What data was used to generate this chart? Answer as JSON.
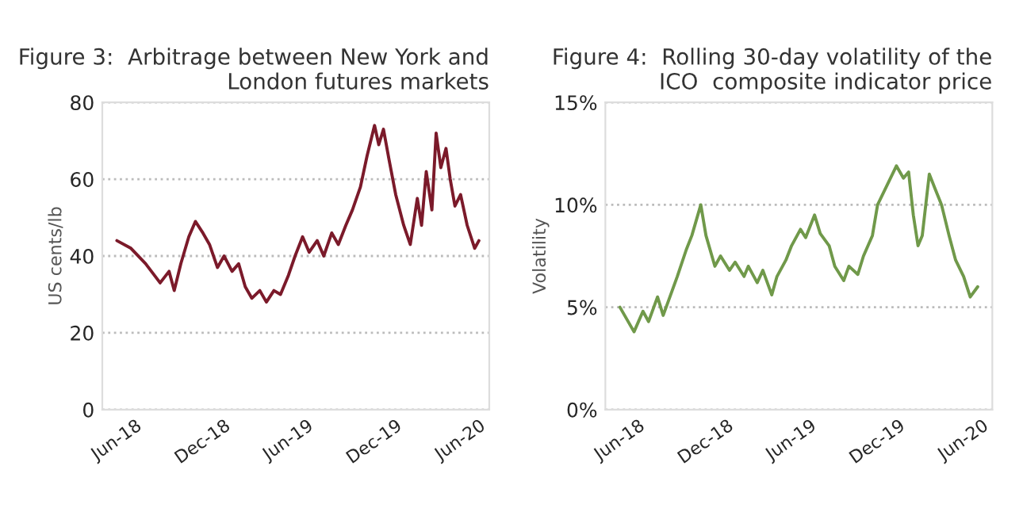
{
  "chart_data": [
    {
      "type": "line",
      "title": "Figure 3:  Arbitrage between New York and\nLondon futures markets",
      "ylabel": "US cents/lb",
      "x": [
        "2018-06-01",
        "2018-07-01",
        "2018-08-01",
        "2018-09-01",
        "2018-09-20",
        "2018-10-01",
        "2018-10-15",
        "2018-11-01",
        "2018-11-15",
        "2018-12-01",
        "2018-12-15",
        "2019-01-01",
        "2019-01-15",
        "2019-02-01",
        "2019-02-15",
        "2019-03-01",
        "2019-03-15",
        "2019-04-01",
        "2019-04-15",
        "2019-05-01",
        "2019-05-15",
        "2019-06-01",
        "2019-06-15",
        "2019-07-01",
        "2019-07-15",
        "2019-08-01",
        "2019-08-15",
        "2019-09-01",
        "2019-09-15",
        "2019-10-01",
        "2019-10-15",
        "2019-11-01",
        "2019-11-15",
        "2019-12-01",
        "2019-12-10",
        "2019-12-20",
        "2020-01-01",
        "2020-01-15",
        "2020-02-01",
        "2020-02-15",
        "2020-03-01",
        "2020-03-10",
        "2020-03-20",
        "2020-04-01",
        "2020-04-10",
        "2020-04-20",
        "2020-05-01",
        "2020-05-10",
        "2020-05-20",
        "2020-06-01",
        "2020-06-15",
        "2020-07-01",
        "2020-07-10"
      ],
      "series": [
        {
          "color": "#7b1a2a",
          "values": [
            44,
            42,
            38,
            33,
            36,
            31,
            38,
            45,
            49,
            46,
            43,
            37,
            40,
            36,
            38,
            32,
            29,
            31,
            28,
            31,
            30,
            35,
            40,
            45,
            41,
            44,
            40,
            46,
            43,
            48,
            52,
            58,
            66,
            74,
            69,
            73,
            65,
            56,
            48,
            43,
            55,
            48,
            62,
            52,
            72,
            63,
            68,
            60,
            53,
            56,
            48,
            42,
            44
          ]
        }
      ],
      "xlim": [
        "2018-05-01",
        "2020-08-01"
      ],
      "xticks": [
        {
          "value": "2018-06-01",
          "label": "Jun-18"
        },
        {
          "value": "2018-12-01",
          "label": "Dec-18"
        },
        {
          "value": "2019-06-01",
          "label": "Jun-19"
        },
        {
          "value": "2019-12-01",
          "label": "Dec-19"
        },
        {
          "value": "2020-06-01",
          "label": "Jun-20"
        }
      ],
      "ylim": [
        0,
        80
      ],
      "yticks": [
        0,
        20,
        40,
        60,
        80
      ],
      "grid": "y",
      "line_style": "solid"
    },
    {
      "type": "line",
      "title": "Figure 4:  Rolling 30-day volatility of the\nICO  composite indicator price",
      "ylabel": "Volatility",
      "x": [
        "2018-06-01",
        "2018-07-01",
        "2018-07-20",
        "2018-08-01",
        "2018-08-20",
        "2018-09-01",
        "2018-09-20",
        "2018-10-01",
        "2018-10-20",
        "2018-11-01",
        "2018-11-20",
        "2018-12-01",
        "2018-12-20",
        "2019-01-01",
        "2019-01-20",
        "2019-02-01",
        "2019-02-20",
        "2019-03-01",
        "2019-03-20",
        "2019-04-01",
        "2019-04-20",
        "2019-05-01",
        "2019-05-20",
        "2019-06-01",
        "2019-06-20",
        "2019-07-01",
        "2019-07-20",
        "2019-08-01",
        "2019-08-20",
        "2019-09-01",
        "2019-09-20",
        "2019-10-01",
        "2019-10-20",
        "2019-11-01",
        "2019-11-20",
        "2019-12-01",
        "2020-01-10",
        "2020-01-25",
        "2020-02-05",
        "2020-02-15",
        "2020-02-25",
        "2020-03-05",
        "2020-03-20",
        "2020-04-01",
        "2020-04-15",
        "2020-05-01",
        "2020-05-15",
        "2020-06-01",
        "2020-06-15",
        "2020-07-01"
      ],
      "series": [
        {
          "color": "#70994a",
          "values": [
            5.0,
            3.8,
            4.8,
            4.3,
            5.5,
            4.6,
            5.8,
            6.5,
            7.8,
            8.5,
            10.0,
            8.5,
            7.0,
            7.5,
            6.8,
            7.2,
            6.5,
            7.0,
            6.2,
            6.8,
            5.6,
            6.5,
            7.3,
            8.0,
            8.8,
            8.4,
            9.5,
            8.6,
            8.0,
            7.0,
            6.3,
            7.0,
            6.6,
            7.5,
            8.5,
            10.0,
            11.9,
            11.3,
            11.6,
            9.5,
            8.0,
            8.5,
            11.5,
            10.8,
            10.0,
            8.5,
            7.3,
            6.5,
            5.5,
            6.0
          ]
        }
      ],
      "xlim": [
        "2018-05-01",
        "2020-08-01"
      ],
      "xticks": [
        {
          "value": "2018-06-01",
          "label": "Jun-18"
        },
        {
          "value": "2018-12-01",
          "label": "Dec-18"
        },
        {
          "value": "2019-06-01",
          "label": "Jun-19"
        },
        {
          "value": "2019-12-01",
          "label": "Dec-19"
        },
        {
          "value": "2020-06-01",
          "label": "Jun-20"
        }
      ],
      "ylim": [
        0,
        15
      ],
      "yticks": [
        {
          "value": 0,
          "label": "0%"
        },
        {
          "value": 5,
          "label": "5%"
        },
        {
          "value": 10,
          "label": "10%"
        },
        {
          "value": 15,
          "label": "15%"
        }
      ],
      "grid": "y",
      "line_style": "solid"
    }
  ]
}
